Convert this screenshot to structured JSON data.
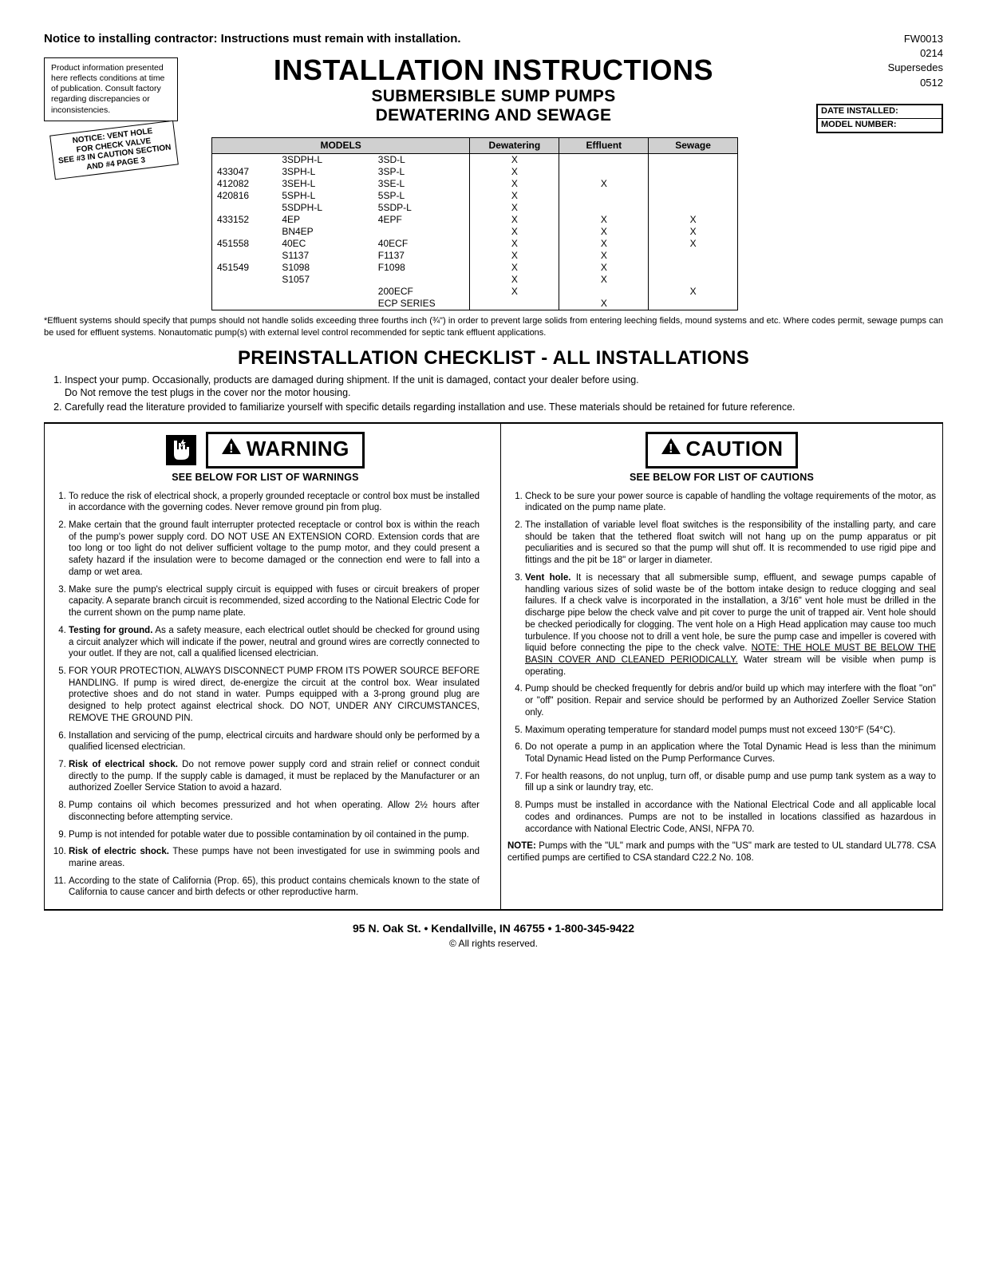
{
  "header": {
    "notice": "Notice to installing contractor:  Instructions must remain with installation.",
    "product_info": "Product information presented here reflects conditions at time of  publication. Consult factory regarding discrepancies or inconsistencies.",
    "doc_id": "FW0013",
    "rev": "0214",
    "supersedes_label": "Supersedes",
    "supersedes_rev": "0512",
    "title": "INSTALLATION INSTRUCTIONS",
    "subtitle1": "SUBMERSIBLE SUMP PUMPS",
    "subtitle2": "DEWATERING AND SEWAGE",
    "install_box": {
      "date": "DATE INSTALLED:",
      "model": "MODEL NUMBER:"
    },
    "stamp": {
      "l1": "NOTICE: VENT HOLE",
      "l2": "FOR CHECK VALVE",
      "l3": "SEE #3 IN CAUTION SECTION",
      "l4": "AND #4 PAGE 3"
    }
  },
  "table": {
    "headers": [
      "MODELS",
      "Dewatering",
      "Effluent",
      "Sewage"
    ],
    "rows": [
      {
        "c0": "",
        "c1": "3SDPH-L",
        "c2": "3SD-L",
        "d": "X",
        "e": "",
        "s": ""
      },
      {
        "c0": "433047",
        "c1": "3SPH-L",
        "c2": "3SP-L",
        "d": "X",
        "e": "",
        "s": ""
      },
      {
        "c0": "412082",
        "c1": "3SEH-L",
        "c2": "3SE-L",
        "d": "X",
        "e": "X",
        "s": ""
      },
      {
        "c0": "420816",
        "c1": "5SPH-L",
        "c2": "5SP-L",
        "d": "X",
        "e": "",
        "s": ""
      },
      {
        "c0": "",
        "c1": "5SDPH-L",
        "c2": "5SDP-L",
        "d": "X",
        "e": "",
        "s": ""
      },
      {
        "c0": "433152",
        "c1": "4EP",
        "c2": "4EPF",
        "d": "X",
        "e": "X",
        "s": "X"
      },
      {
        "c0": "",
        "c1": "BN4EP",
        "c2": "",
        "d": "X",
        "e": "X",
        "s": "X"
      },
      {
        "c0": "451558",
        "c1": "40EC",
        "c2": "40ECF",
        "d": "X",
        "e": "X",
        "s": "X"
      },
      {
        "c0": "",
        "c1": "S1137",
        "c2": "F1137",
        "d": "X",
        "e": "X",
        "s": ""
      },
      {
        "c0": "451549",
        "c1": "S1098",
        "c2": "F1098",
        "d": "X",
        "e": "X",
        "s": ""
      },
      {
        "c0": "",
        "c1": "S1057",
        "c2": "",
        "d": "X",
        "e": "X",
        "s": ""
      },
      {
        "c0": "",
        "c1": "",
        "c2": "200ECF",
        "d": "X",
        "e": "",
        "s": "X"
      },
      {
        "c0": "",
        "c1": "",
        "c2": "ECP SERIES",
        "d": "",
        "e": "X",
        "s": ""
      }
    ],
    "footnote": "*Effluent systems should specify that pumps should not handle solids exceeding three fourths inch (¾\") in order to prevent large solids from entering leeching fields, mound systems and etc.  Where codes permit, sewage pumps can be used for effluent systems. Nonautomatic pump(s) with external level control recommended for septic tank effluent applications."
  },
  "checklist": {
    "title": "PREINSTALLATION CHECKLIST - ALL INSTALLATIONS",
    "items": [
      "Inspect your pump. Occasionally, products are damaged during shipment.  If the unit is damaged, contact your dealer before using.\nDo Not remove the test plugs in the cover nor the motor housing.",
      "Carefully read the literature provided to familiarize yourself with specific details regarding installation and use. These materials should be retained for future reference."
    ]
  },
  "warning": {
    "title": "WARNING",
    "sub": "SEE BELOW FOR LIST OF WARNINGS",
    "items": [
      {
        "lead": "",
        "text": "To reduce the risk of electrical shock, a properly grounded receptacle or control box must be installed in accordance with the governing codes.  Never remove ground pin from plug."
      },
      {
        "lead": "",
        "text": "Make certain that the ground fault interrupter protected receptacle or control box is within the reach  of the pump's power supply cord.  DO NOT USE AN EXTENSION CORD. Extension cords that are too long or too light do not deliver sufficient voltage to the pump motor, and they could present a safety hazard if the insulation were to become damaged or the connection end were to fall into a damp or wet area."
      },
      {
        "lead": "",
        "text": "Make sure the pump's electrical supply circuit is equipped with fuses or circuit breakers of proper capacity.  A separate branch circuit is recommended, sized according to the National Electric Code for the current shown on the pump name plate."
      },
      {
        "lead": "Testing for ground.",
        "text": "  As a safety measure, each electrical outlet should be checked for ground using a circuit analyzer which will indicate if the power, neutral and ground wires are correctly connected to your outlet.  If they are not, call a qualified licensed electrician."
      },
      {
        "lead": "",
        "text": "FOR YOUR PROTECTION, ALWAYS DISCONNECT PUMP FROM ITS POWER SOURCE BEFORE HANDLING.  If pump is wired direct, de-energize the circuit at the control box. Wear insulated protective shoes and do not stand in water.  Pumps equipped with a 3-prong ground plug are designed to help protect against electrical shock.  DO NOT, UNDER ANY CIRCUMSTANCES, REMOVE THE GROUND PIN."
      },
      {
        "lead": "",
        "text": "Installation and servicing of the pump, electrical circuits and hardware should only be performed by a qualified licensed electrician."
      },
      {
        "lead": "Risk of electrical shock.",
        "text": "  Do not remove power supply cord and strain relief or connect conduit directly to the pump.  If the supply cable is damaged, it must be replaced by the Manufacturer or an authorized Zoeller Service Station to avoid a hazard."
      },
      {
        "lead": "",
        "text": "Pump contains oil which becomes pressurized and hot when operating.  Allow 2½ hours after disconnecting before attempting service."
      },
      {
        "lead": "",
        "text": "Pump is not intended for potable water due to possible contamination by oil contained in the pump."
      },
      {
        "lead": "Risk of electric shock.",
        "text": "  These pumps have not been investigated for use in swimming pools and marine areas."
      },
      {
        "lead": "",
        "text": "According to the state of California (Prop. 65), this product contains chemicals known to the state of California to cause cancer and birth defects or other reproductive harm."
      }
    ]
  },
  "caution": {
    "title": "CAUTION",
    "sub": "SEE BELOW FOR LIST OF CAUTIONS",
    "items": [
      {
        "lead": "",
        "text": "Check to be sure your power source is capable of handling the voltage requirements of the motor, as indicated on the pump name plate."
      },
      {
        "lead": "",
        "text": "The installation of variable level float switches is the responsibility of the installing party, and care should be taken that the tethered float  switch will not hang up on the pump apparatus or pit peculiarities and is secured so that the pump will shut off.  It is recommended to use rigid pipe and fittings and the pit be 18\" or larger in diameter."
      },
      {
        "lead": "Vent hole.",
        "text": "  It is necessary that all submersible sump, effluent, and sewage pumps capable of handling various sizes of solid waste be of the bottom intake design to reduce clogging and seal failures.  If a check valve is incorporated in the installation, a 3/16\" vent hole must be drilled in the discharge pipe below the check valve and pit cover to purge the unit of trapped air.   Vent hole should be checked periodically for clogging.   The vent hole on a High Head application may cause too much turbulence. If you choose not to drill a vent hole, be sure the pump case and impeller is covered with liquid before connecting the pipe to the check valve. ",
        "underline": "NOTE: THE HOLE MUST BE BELOW THE BASIN COVER AND CLEANED PERIODICALLY.",
        "after": " Water stream will be visible when pump is operating."
      },
      {
        "lead": "",
        "text": "Pump should be checked frequently for debris and/or build up which may interfere with the float \"on\" or \"off\" position. Repair and service should be performed by an Authorized Zoeller Service Station only."
      },
      {
        "lead": "",
        "text": "Maximum operating temperature for standard model pumps must not exceed 130°F (54°C)."
      },
      {
        "lead": "",
        "text": "Do not operate a pump in an application where the Total Dynamic Head is less than the minimum Total Dynamic Head listed on the Pump Performance Curves."
      },
      {
        "lead": "",
        "text": "For health reasons, do not unplug, turn off, or disable pump and use pump tank system as a way to fill up a sink or laundry tray, etc."
      },
      {
        "lead": "",
        "text": "Pumps must be installed in accordance with the National Electrical Code and all applicable local codes and ordinances.  Pumps are not to be installed in locations classified as hazardous in accordance with National Electric Code, ANSI, NFPA 70."
      }
    ],
    "note_lead": "NOTE:",
    "note": " Pumps with the \"UL\" mark and pumps with the \"US\" mark are tested to UL standard UL778.  CSA certified pumps are certified to CSA standard C22.2 No. 108."
  },
  "footer": {
    "addr": "95 N. Oak St. • Kendallville, IN 46755 • 1-800-345-9422",
    "copy": "©   All rights reserved."
  }
}
